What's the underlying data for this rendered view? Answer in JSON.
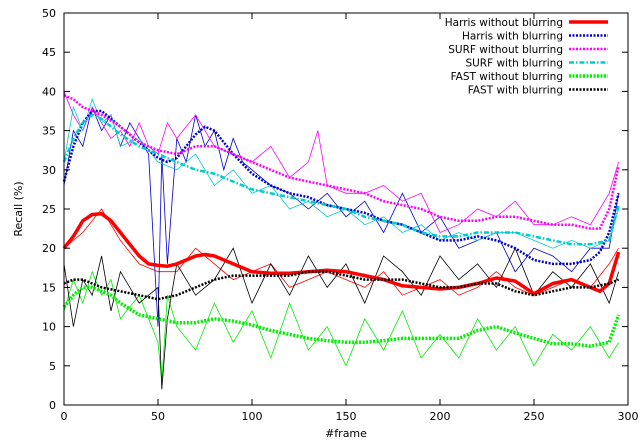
{
  "chart_data": {
    "type": "line",
    "title": "",
    "xlabel": "#frame",
    "ylabel": "Recall (%)",
    "xlim": [
      0,
      300
    ],
    "ylim": [
      0,
      50
    ],
    "xticks": [
      0,
      50,
      100,
      150,
      200,
      250,
      300
    ],
    "yticks": [
      0,
      5,
      10,
      15,
      20,
      25,
      30,
      35,
      40,
      45,
      50
    ],
    "grid": false,
    "legend_position": "top-right",
    "series": [
      {
        "name": "Harris without blurring",
        "color": "#ff0000",
        "style": "solid-thick",
        "raw_x": [
          0,
          10,
          20,
          30,
          40,
          50,
          60,
          70,
          80,
          90,
          100,
          110,
          120,
          130,
          140,
          150,
          160,
          170,
          180,
          190,
          200,
          210,
          220,
          230,
          240,
          250,
          260,
          270,
          280,
          290,
          295
        ],
        "raw": [
          20,
          22,
          25,
          21,
          18,
          17,
          17,
          20,
          18,
          16,
          17,
          18,
          15,
          16,
          17,
          16,
          15,
          17,
          14,
          15,
          16,
          14,
          15,
          17,
          15,
          14,
          15,
          16,
          15,
          18,
          20
        ],
        "smooth_x": [
          0,
          5,
          10,
          15,
          20,
          25,
          30,
          35,
          40,
          45,
          50,
          55,
          60,
          65,
          70,
          75,
          80,
          90,
          100,
          110,
          120,
          130,
          140,
          150,
          160,
          170,
          180,
          190,
          200,
          210,
          220,
          230,
          240,
          250,
          260,
          270,
          280,
          285,
          290,
          295
        ],
        "smooth": [
          20,
          21.5,
          23.5,
          24.3,
          24.4,
          23.5,
          22,
          20.5,
          19,
          18,
          17.8,
          17.7,
          18,
          18.5,
          19,
          19.2,
          19,
          18,
          17,
          16.8,
          16.8,
          17,
          17.2,
          17,
          16.5,
          16,
          15.2,
          15,
          14.8,
          15,
          15.5,
          16.2,
          15.8,
          14.2,
          15.5,
          16,
          15,
          14.5,
          15.5,
          19.5
        ]
      },
      {
        "name": "Harris with blurring",
        "color": "#0000cc",
        "style": "dotted",
        "raw_x": [
          0,
          5,
          10,
          15,
          20,
          25,
          30,
          35,
          40,
          45,
          50,
          52,
          55,
          60,
          65,
          70,
          75,
          80,
          85,
          90,
          95,
          100,
          110,
          120,
          130,
          140,
          150,
          160,
          170,
          180,
          190,
          200,
          210,
          220,
          230,
          240,
          250,
          260,
          270,
          280,
          290,
          295
        ],
        "raw": [
          28,
          35,
          33,
          38,
          35,
          37,
          33,
          36,
          34,
          32,
          10,
          32,
          18,
          34,
          31,
          37,
          33,
          35,
          30,
          34,
          31,
          30,
          28,
          27,
          25,
          27,
          24,
          26,
          22,
          27,
          22,
          24,
          20,
          21,
          22,
          17,
          20,
          19,
          17,
          20,
          20,
          27
        ],
        "smooth_x": [
          0,
          5,
          10,
          15,
          20,
          25,
          30,
          35,
          40,
          45,
          50,
          55,
          60,
          65,
          70,
          75,
          80,
          85,
          90,
          100,
          110,
          120,
          130,
          140,
          150,
          160,
          170,
          180,
          190,
          200,
          210,
          220,
          230,
          240,
          250,
          260,
          270,
          280,
          285,
          290,
          295
        ],
        "smooth": [
          28.5,
          33,
          36,
          37.5,
          37.5,
          36.5,
          35.5,
          34.5,
          33.5,
          32.5,
          31.5,
          31,
          31.5,
          33,
          34.5,
          35.5,
          35,
          33.5,
          32,
          29.5,
          28,
          27,
          26.5,
          25.5,
          25,
          24.5,
          23.5,
          23,
          22,
          21,
          21,
          21.5,
          21,
          20,
          18.5,
          18,
          18,
          18.5,
          19.5,
          22,
          27
        ]
      },
      {
        "name": "SURF without blurring",
        "color": "#ff00ff",
        "style": "dotted",
        "raw_x": [
          0,
          5,
          10,
          15,
          20,
          25,
          30,
          35,
          40,
          45,
          50,
          55,
          60,
          70,
          80,
          90,
          100,
          110,
          120,
          130,
          135,
          140,
          150,
          160,
          170,
          180,
          190,
          200,
          210,
          220,
          230,
          240,
          250,
          260,
          270,
          280,
          290,
          295
        ],
        "raw": [
          40,
          37,
          35,
          38,
          36,
          34,
          35,
          33,
          36,
          33,
          32,
          36,
          34,
          37,
          33,
          32,
          31,
          33,
          29,
          31,
          35,
          28,
          27,
          27,
          28,
          26,
          27,
          22,
          23,
          25,
          24,
          26,
          23,
          23,
          24,
          23,
          27,
          31
        ],
        "smooth_x": [
          0,
          5,
          10,
          15,
          20,
          30,
          40,
          50,
          60,
          70,
          80,
          90,
          100,
          110,
          120,
          130,
          140,
          150,
          160,
          170,
          180,
          190,
          200,
          210,
          220,
          230,
          240,
          250,
          260,
          270,
          280,
          285,
          290,
          295
        ],
        "smooth": [
          39.5,
          39,
          38,
          37.5,
          37,
          35.5,
          33.5,
          32.5,
          32,
          33,
          33,
          32,
          31,
          30,
          29,
          28.5,
          28,
          27.5,
          27,
          26,
          25.5,
          25,
          24,
          23.5,
          23.5,
          24,
          24,
          23.5,
          23,
          23,
          22.5,
          22.5,
          25,
          30.5
        ]
      },
      {
        "name": "SURF with blurring",
        "color": "#00cccc",
        "style": "dash-dot",
        "raw_x": [
          0,
          5,
          10,
          15,
          20,
          25,
          30,
          40,
          50,
          60,
          70,
          80,
          90,
          100,
          110,
          120,
          130,
          140,
          150,
          160,
          170,
          180,
          190,
          200,
          210,
          220,
          230,
          240,
          250,
          260,
          270,
          280,
          290,
          295
        ],
        "raw": [
          31,
          38,
          35,
          39,
          36,
          37,
          33,
          34,
          31,
          30,
          32,
          28,
          30,
          27,
          28,
          25,
          26,
          24,
          25,
          23,
          24,
          22,
          23,
          21,
          22,
          21,
          22,
          22,
          21,
          20,
          21,
          20,
          21,
          25
        ],
        "smooth_x": [
          0,
          5,
          10,
          15,
          20,
          30,
          40,
          50,
          60,
          70,
          80,
          90,
          100,
          110,
          120,
          130,
          140,
          150,
          160,
          170,
          180,
          190,
          200,
          210,
          220,
          230,
          240,
          250,
          260,
          270,
          280,
          290,
          295
        ],
        "smooth": [
          31,
          34,
          36,
          37,
          36.5,
          34.5,
          33,
          32,
          31,
          30,
          29.5,
          28.5,
          27.5,
          27,
          26.5,
          26,
          25.5,
          25,
          24,
          23.5,
          23,
          22,
          21.5,
          21.5,
          22,
          22,
          22,
          21.5,
          21,
          20.5,
          20.5,
          21,
          25.5
        ]
      },
      {
        "name": "FAST without blurring",
        "color": "#00ee00",
        "style": "dotted-thick",
        "raw_x": [
          0,
          5,
          10,
          15,
          20,
          25,
          30,
          40,
          50,
          52,
          55,
          60,
          70,
          80,
          90,
          100,
          110,
          120,
          130,
          140,
          150,
          160,
          170,
          180,
          190,
          200,
          210,
          220,
          230,
          240,
          250,
          260,
          270,
          280,
          290,
          295
        ],
        "raw": [
          12,
          16,
          13,
          17,
          14,
          16,
          11,
          14,
          8,
          3,
          14,
          10,
          7,
          13,
          8,
          12,
          6,
          13,
          7,
          10,
          5,
          11,
          7,
          12,
          6,
          9,
          6,
          11,
          7,
          10,
          5,
          9,
          7,
          10,
          6,
          8
        ],
        "smooth_x": [
          0,
          5,
          10,
          15,
          20,
          25,
          30,
          40,
          50,
          60,
          70,
          80,
          90,
          100,
          110,
          120,
          130,
          140,
          150,
          160,
          170,
          180,
          190,
          200,
          210,
          220,
          230,
          240,
          250,
          260,
          270,
          280,
          290,
          295
        ],
        "smooth": [
          12.5,
          14,
          15,
          15,
          14.5,
          14,
          13,
          11.5,
          11,
          10.5,
          10.5,
          11,
          10.7,
          10.2,
          9.5,
          9,
          8.5,
          8.2,
          8,
          8,
          8.2,
          8.5,
          8.5,
          8.5,
          8.5,
          9.5,
          10,
          9.2,
          8.5,
          7.8,
          7.8,
          7.5,
          8,
          11.5
        ]
      },
      {
        "name": "FAST with blurring",
        "color": "#000000",
        "style": "dotted",
        "raw_x": [
          0,
          5,
          10,
          15,
          20,
          25,
          30,
          40,
          50,
          52,
          55,
          60,
          70,
          80,
          90,
          100,
          110,
          120,
          130,
          140,
          150,
          160,
          170,
          180,
          190,
          200,
          210,
          220,
          230,
          240,
          250,
          260,
          270,
          280,
          290,
          295
        ],
        "raw": [
          18,
          10,
          16,
          14,
          19,
          12,
          17,
          13,
          15,
          2,
          11,
          18,
          14,
          16,
          20,
          13,
          18,
          14,
          19,
          15,
          18,
          13,
          19,
          17,
          14,
          19,
          16,
          18,
          15,
          20,
          14,
          17,
          15,
          18,
          13,
          17
        ],
        "smooth_x": [
          0,
          5,
          10,
          15,
          20,
          30,
          40,
          50,
          60,
          70,
          80,
          90,
          100,
          110,
          120,
          130,
          140,
          150,
          160,
          170,
          180,
          190,
          200,
          210,
          220,
          230,
          240,
          250,
          260,
          270,
          280,
          290,
          295
        ],
        "smooth": [
          15.5,
          16,
          16,
          15.5,
          15,
          14.5,
          14,
          13.5,
          14,
          15,
          16,
          16.5,
          16.5,
          16.5,
          16.5,
          17,
          17,
          16.5,
          16,
          16,
          16,
          15.5,
          15,
          15,
          15.5,
          15.5,
          14.5,
          14,
          14.5,
          15,
          15,
          15.5,
          16
        ]
      }
    ]
  }
}
